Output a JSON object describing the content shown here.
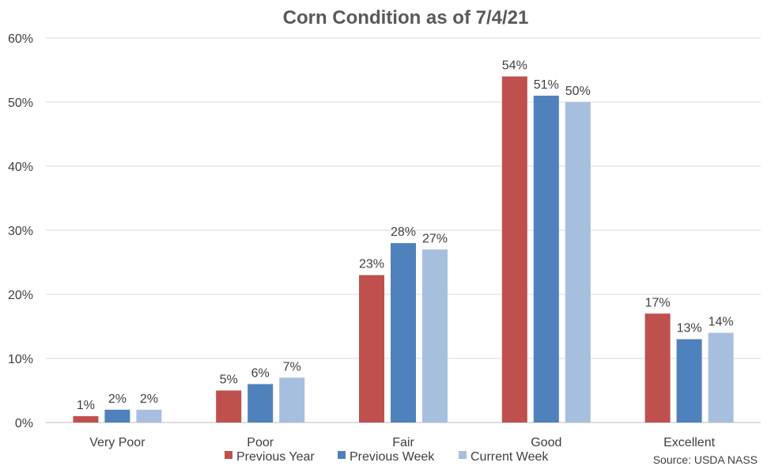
{
  "chart_data": {
    "type": "bar",
    "title": "Corn Condition as of 7/4/21",
    "categories": [
      "Very Poor",
      "Poor",
      "Fair",
      "Good",
      "Excellent"
    ],
    "series": [
      {
        "name": "Previous Year",
        "color": "#c0504d",
        "values": [
          1,
          5,
          23,
          54,
          17
        ],
        "labels": [
          "1%",
          "5%",
          "23%",
          "54%",
          "17%"
        ]
      },
      {
        "name": "Previous Week",
        "color": "#4f81bd",
        "values": [
          2,
          6,
          28,
          51,
          13
        ],
        "labels": [
          "2%",
          "6%",
          "28%",
          "51%",
          "13%"
        ]
      },
      {
        "name": "Current Week",
        "color": "#a7bfde",
        "values": [
          2,
          7,
          27,
          50,
          14
        ],
        "labels": [
          "2%",
          "7%",
          "27%",
          "50%",
          "14%"
        ]
      }
    ],
    "ylim": [
      0,
      60
    ],
    "yticks": [
      0,
      10,
      20,
      30,
      40,
      50,
      60
    ],
    "ytick_labels": [
      "0%",
      "10%",
      "20%",
      "30%",
      "40%",
      "50%",
      "60%"
    ],
    "grid": true,
    "legend_position": "bottom",
    "source": "Source: USDA NASS"
  }
}
